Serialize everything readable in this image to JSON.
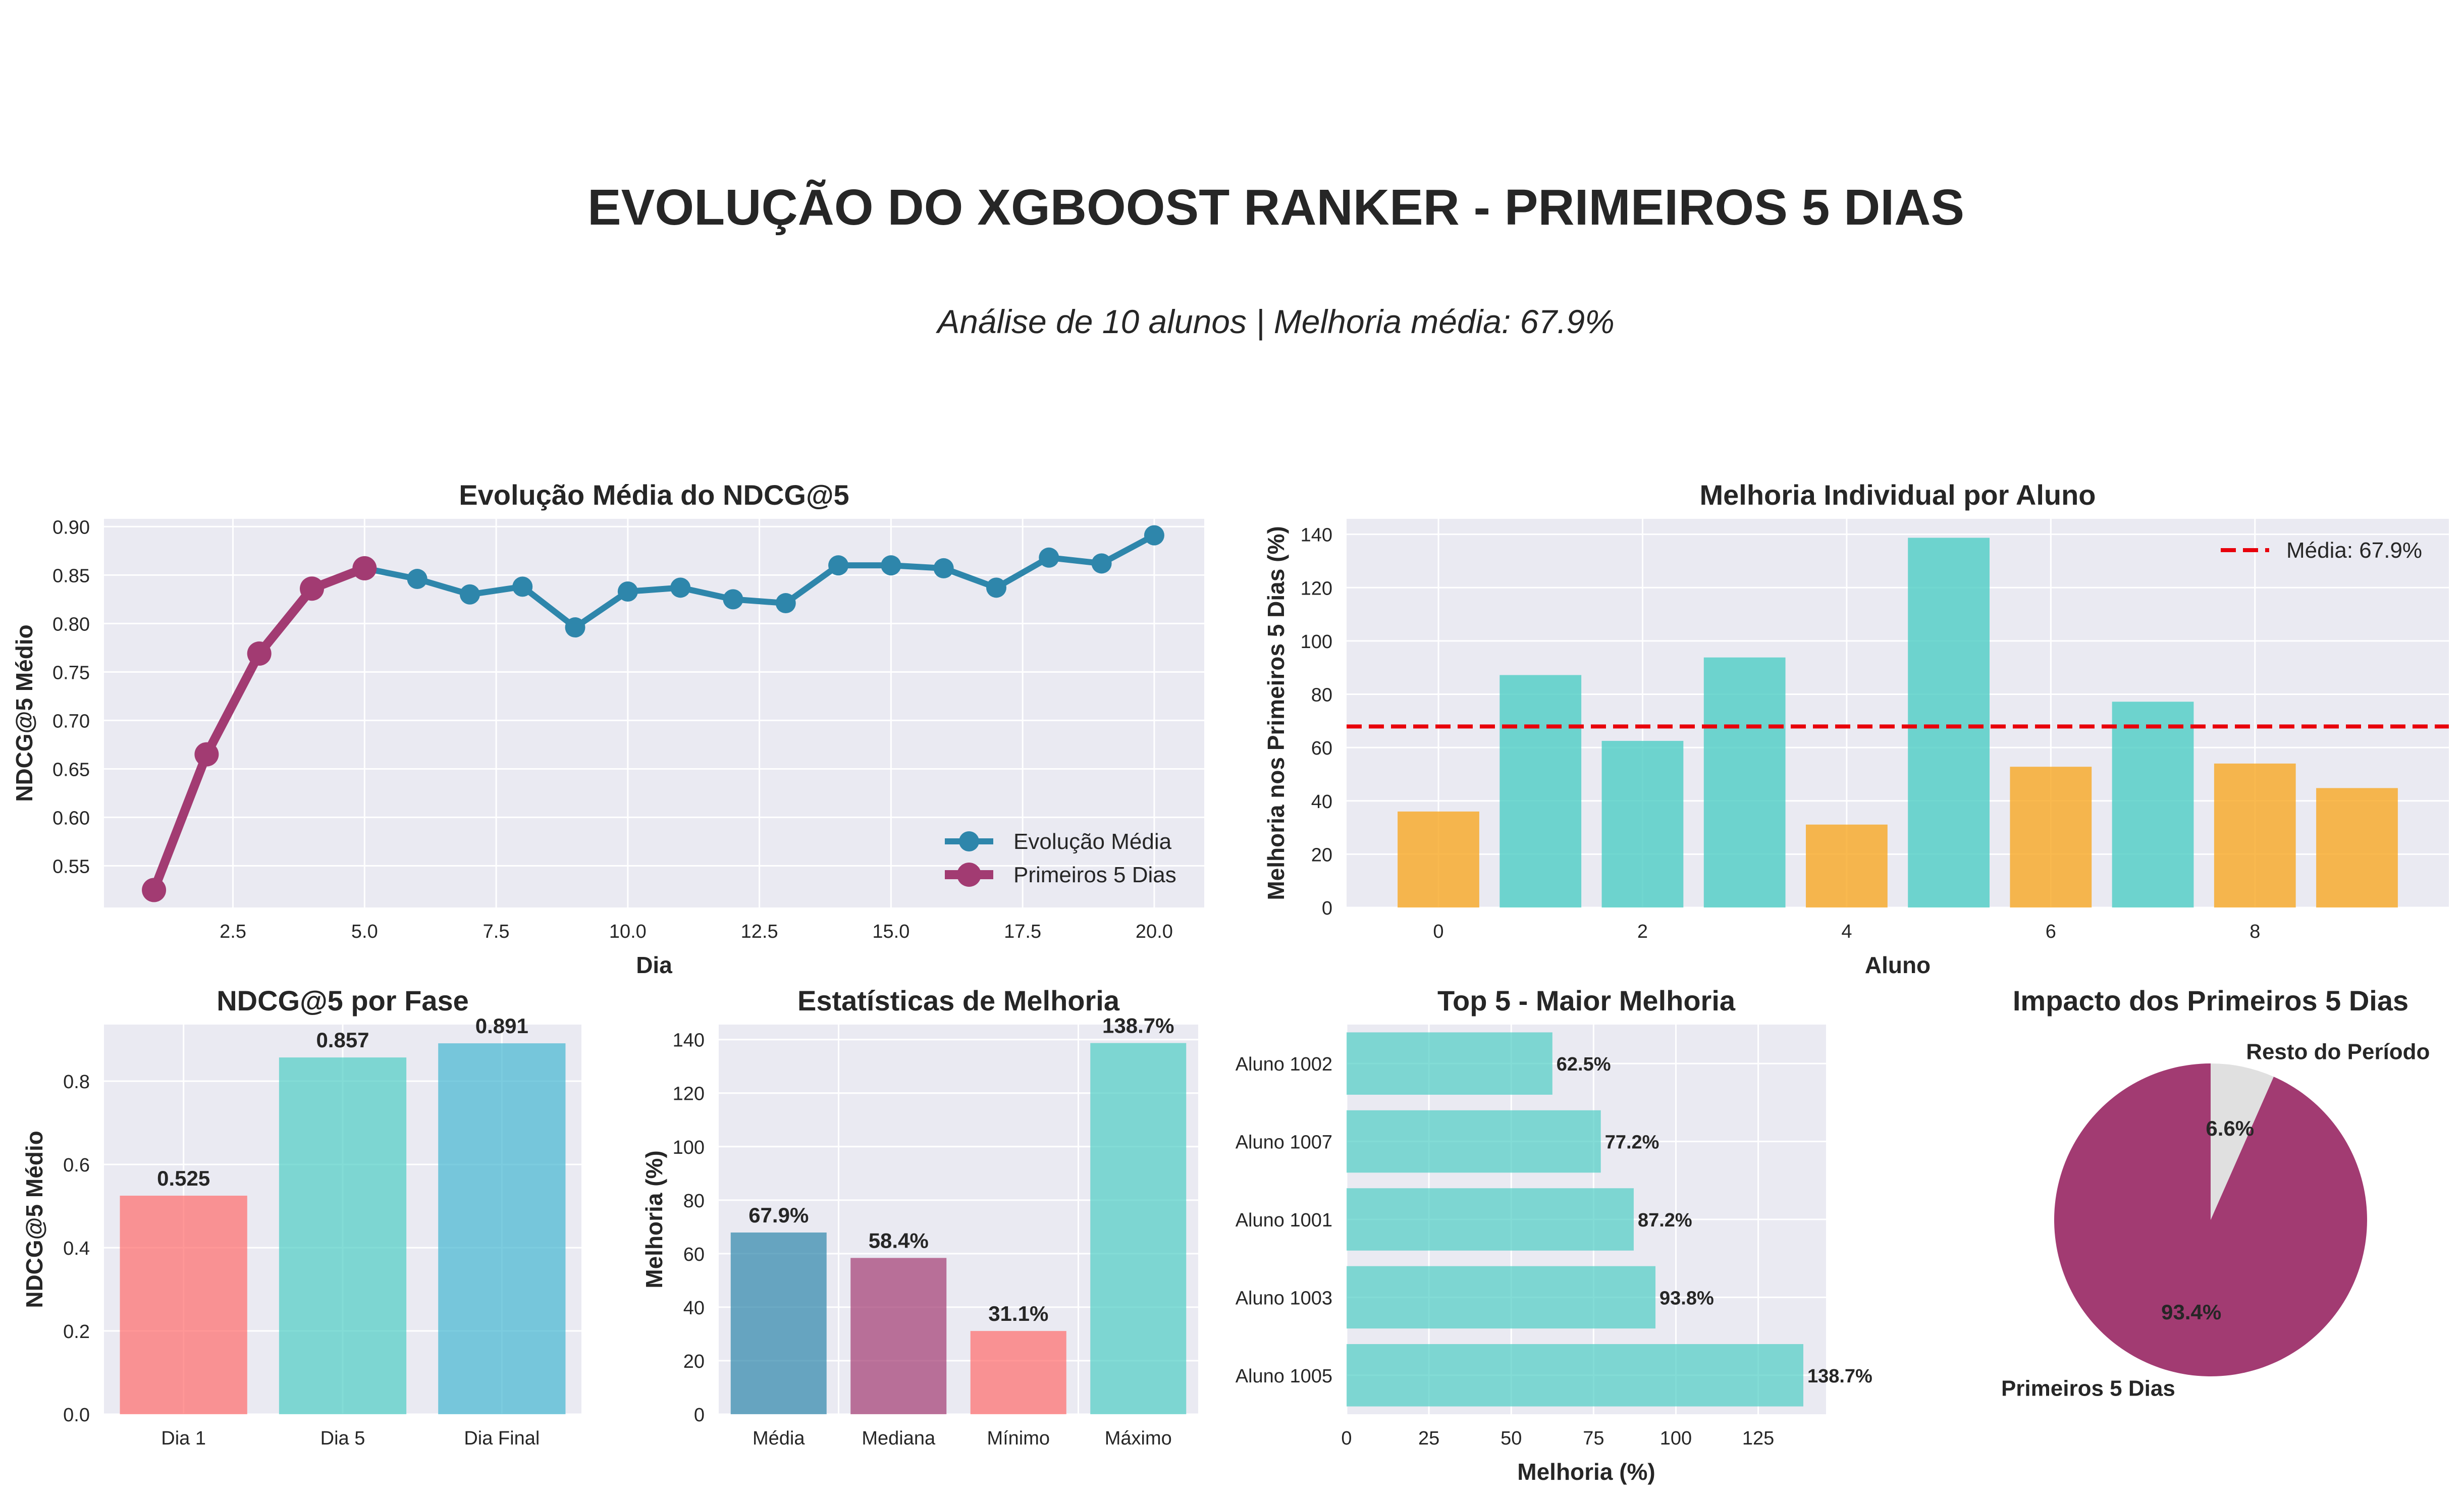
{
  "title": "EVOLUÇÃO DO XGBOOST RANKER - PRIMEIROS 5 DIAS",
  "subtitle": "Análise de 10 alunos | Melhoria média: 67.9%",
  "colors": {
    "teal": "#4ECDC4",
    "blue": "#2E86AB",
    "plum": "#A23B72",
    "orange": "#F7A823",
    "salmon": "#FF6B6B",
    "sky": "#45B7D1",
    "red_dash": "#E8000B",
    "light_gray": "#E0E0E0",
    "panel_bg": "#EAEAF2"
  },
  "chart_data": [
    {
      "id": "evolution",
      "type": "line",
      "title": "Evolução Média do NDCG@5",
      "xlabel": "Dia",
      "ylabel": "NDCG@5 Médio",
      "xlim": [
        0.05,
        20.95
      ],
      "ylim": [
        0.507,
        0.908
      ],
      "xticks": [
        2.5,
        5.0,
        7.5,
        10.0,
        12.5,
        15.0,
        17.5,
        20.0
      ],
      "xtick_labels": [
        "2.5",
        "5.0",
        "7.5",
        "10.0",
        "12.5",
        "15.0",
        "17.5",
        "20.0"
      ],
      "yticks": [
        0.55,
        0.6,
        0.65,
        0.7,
        0.75,
        0.8,
        0.85,
        0.9
      ],
      "ytick_labels": [
        "0.55",
        "0.60",
        "0.65",
        "0.70",
        "0.75",
        "0.80",
        "0.85",
        "0.90"
      ],
      "legend_position": "bottom-right",
      "series": [
        {
          "name": "Evolução Média",
          "color": "#2E86AB",
          "x": [
            1,
            2,
            3,
            4,
            5,
            6,
            7,
            8,
            9,
            10,
            11,
            12,
            13,
            14,
            15,
            16,
            17,
            18,
            19,
            20
          ],
          "y": [
            0.525,
            0.665,
            0.769,
            0.836,
            0.857,
            0.846,
            0.83,
            0.838,
            0.796,
            0.833,
            0.837,
            0.825,
            0.821,
            0.86,
            0.86,
            0.857,
            0.837,
            0.868,
            0.862,
            0.891
          ]
        },
        {
          "name": "Primeiros 5 Dias",
          "color": "#A23B72",
          "x": [
            1,
            2,
            3,
            4,
            5
          ],
          "y": [
            0.525,
            0.665,
            0.769,
            0.836,
            0.857
          ]
        }
      ]
    },
    {
      "id": "individual",
      "type": "bar",
      "title": "Melhoria Individual por Aluno",
      "xlabel": "Aluno",
      "ylabel": "Melhoria nos Primeiros 5 Dias (%)",
      "xlim": [
        -0.9,
        9.9
      ],
      "ylim": [
        0,
        145.8
      ],
      "xticks": [
        0,
        2,
        4,
        6,
        8
      ],
      "xtick_labels": [
        "0",
        "2",
        "4",
        "6",
        "8"
      ],
      "yticks": [
        0,
        20,
        40,
        60,
        80,
        100,
        120,
        140
      ],
      "ytick_labels": [
        "0",
        "20",
        "40",
        "60",
        "80",
        "100",
        "120",
        "140"
      ],
      "x": [
        0,
        1,
        2,
        3,
        4,
        5,
        6,
        7,
        8,
        9
      ],
      "values": [
        36.0,
        87.2,
        62.5,
        93.8,
        31.1,
        138.7,
        52.8,
        77.2,
        54.0,
        44.8
      ],
      "bar_colors": [
        "#F7A823",
        "#4ECDC4",
        "#4ECDC4",
        "#4ECDC4",
        "#F7A823",
        "#4ECDC4",
        "#F7A823",
        "#4ECDC4",
        "#F7A823",
        "#F7A823"
      ],
      "mean_line": 67.9,
      "legend_position": "top-right",
      "legend_label": "Média: 67.9%"
    },
    {
      "id": "phase",
      "type": "bar",
      "title": "NDCG@5 por Fase",
      "xlabel": "",
      "ylabel": "NDCG@5 Médio",
      "ylim": [
        0,
        0.936
      ],
      "yticks": [
        0,
        0.2,
        0.4,
        0.6,
        0.8
      ],
      "ytick_labels": [
        "0.0",
        "0.2",
        "0.4",
        "0.6",
        "0.8"
      ],
      "categories": [
        "Dia 1",
        "Dia 5",
        "Dia Final"
      ],
      "values": [
        0.525,
        0.857,
        0.891
      ],
      "data_labels": [
        "0.525",
        "0.857",
        "0.891"
      ],
      "bar_colors": [
        "#FF6B6B",
        "#4ECDC4",
        "#45B7D1"
      ]
    },
    {
      "id": "stats",
      "type": "bar",
      "title": "Estatísticas de Melhoria",
      "xlabel": "",
      "ylabel": "Melhoria (%)",
      "ylim": [
        0,
        145.6
      ],
      "yticks": [
        0,
        20,
        40,
        60,
        80,
        100,
        120,
        140
      ],
      "ytick_labels": [
        "0",
        "20",
        "40",
        "60",
        "80",
        "100",
        "120",
        "140"
      ],
      "categories": [
        "Média",
        "Mediana",
        "Mínimo",
        "Máximo"
      ],
      "values": [
        67.9,
        58.4,
        31.1,
        138.7
      ],
      "data_labels": [
        "67.9%",
        "58.4%",
        "31.1%",
        "138.7%"
      ],
      "bar_colors": [
        "#2E86AB",
        "#A23B72",
        "#FF6B6B",
        "#4ECDC4"
      ]
    },
    {
      "id": "top5",
      "type": "bar",
      "orientation": "horizontal",
      "title": "Top 5 - Maior Melhoria",
      "xlabel": "Melhoria (%)",
      "ylabel": "",
      "xlim": [
        0,
        145.6
      ],
      "xticks": [
        0,
        25,
        50,
        75,
        100,
        125
      ],
      "xtick_labels": [
        "0",
        "25",
        "50",
        "75",
        "100",
        "125"
      ],
      "categories": [
        "Aluno 1002",
        "Aluno 1007",
        "Aluno 1001",
        "Aluno 1003",
        "Aluno 1005"
      ],
      "values": [
        62.5,
        77.2,
        87.2,
        93.8,
        138.7
      ],
      "data_labels": [
        "62.5%",
        "77.2%",
        "87.2%",
        "93.8%",
        "138.7%"
      ],
      "bar_color": "#4ECDC4"
    },
    {
      "id": "impact",
      "type": "pie",
      "title": "Impacto dos Primeiros 5 Dias",
      "slices": [
        {
          "label": "Primeiros 5 Dias",
          "value": 93.4,
          "pct_label": "93.4%",
          "color": "#A23B72"
        },
        {
          "label": "Resto do Período",
          "value": 6.6,
          "pct_label": "6.6%",
          "color": "#E0E0E0"
        }
      ]
    }
  ]
}
